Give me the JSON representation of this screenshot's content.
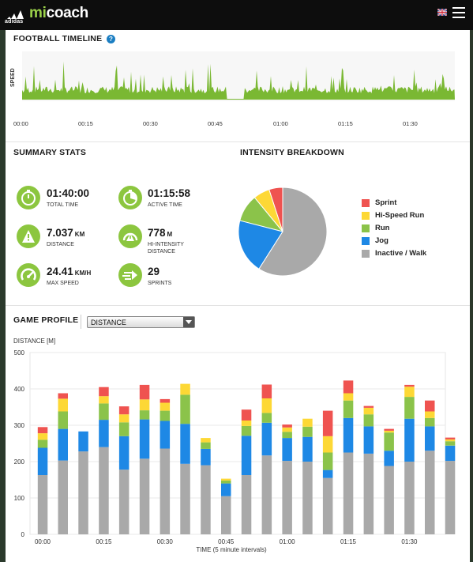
{
  "header": {
    "brand_text": "adidas",
    "app_name_left": "mi",
    "app_name_right": "coach",
    "language_flag": "uk-flag-icon",
    "menu_icon": "hamburger-menu-icon"
  },
  "timeline": {
    "title": "FOOTBALL TIMELINE",
    "help_glyph": "?",
    "y_label": "SPEED",
    "ticks": [
      "00:00",
      "00:15",
      "00:30",
      "00:45",
      "01:00",
      "01:15",
      "01:30"
    ],
    "color": "#7ab833"
  },
  "summary": {
    "title": "SUMMARY STATS",
    "stats": [
      {
        "value": "01:40:00",
        "unit": "",
        "label": "TOTAL TIME",
        "icon": "stopwatch-icon"
      },
      {
        "value": "01:15:58",
        "unit": "",
        "label": "ACTIVE TIME",
        "icon": "active-stopwatch-icon"
      },
      {
        "value": "7.037",
        "unit": "KM",
        "label": "DISTANCE",
        "icon": "distance-icon"
      },
      {
        "value": "778",
        "unit": "M",
        "label": "HI-INTENSITY DISTANCE",
        "icon": "hi-intensity-icon"
      },
      {
        "value": "24.41",
        "unit": "KM/H",
        "label": "MAX SPEED",
        "icon": "max-speed-icon"
      },
      {
        "value": "29",
        "unit": "",
        "label": "SPRINTS",
        "icon": "sprints-icon"
      }
    ]
  },
  "intensity": {
    "title": "INTENSITY BREAKDOWN",
    "legend": [
      {
        "label": "Sprint",
        "color": "#ef5350"
      },
      {
        "label": "Hi-Speed Run",
        "color": "#fdd835"
      },
      {
        "label": "Run",
        "color": "#8bc34a"
      },
      {
        "label": "Jog",
        "color": "#1e88e5"
      },
      {
        "label": "Inactive / Walk",
        "color": "#a9a9a9"
      }
    ]
  },
  "game_profile": {
    "title": "GAME PROFILE",
    "dropdown_value": "DISTANCE",
    "x_label": "TIME (5 minute intervals)"
  },
  "chart_data": [
    {
      "type": "pie",
      "title": "INTENSITY BREAKDOWN",
      "labels": [
        "Sprint",
        "Hi-Speed Run",
        "Run",
        "Jog",
        "Inactive / Walk"
      ],
      "values": [
        5,
        6,
        10,
        20,
        59
      ],
      "colors": [
        "#ef5350",
        "#fdd835",
        "#8bc34a",
        "#1e88e5",
        "#a9a9a9"
      ],
      "legend": "right"
    },
    {
      "type": "bar",
      "stacked": true,
      "ylabel": "DISTANCE [M]",
      "xlabel": "TIME (5 minute intervals)",
      "ylim": [
        0,
        500
      ],
      "yticks": [
        0,
        100,
        200,
        300,
        400,
        500
      ],
      "xtick_labels": [
        "00:00",
        "00:15",
        "00:30",
        "00:45",
        "01:00",
        "01:15",
        "01:30"
      ],
      "xtick_positions": [
        0,
        3,
        6,
        9,
        12,
        15,
        18
      ],
      "grid": true,
      "series": [
        {
          "name": "Inactive / Walk",
          "color": "#a9a9a9",
          "values": [
            163,
            203,
            228,
            240,
            178,
            208,
            236,
            194,
            190,
            105,
            163,
            217,
            202,
            200,
            155,
            225,
            222,
            188,
            200,
            230,
            202
          ]
        },
        {
          "name": "Jog",
          "color": "#1e88e5",
          "values": [
            75,
            87,
            55,
            75,
            92,
            108,
            76,
            110,
            45,
            35,
            108,
            90,
            63,
            68,
            22,
            95,
            75,
            42,
            118,
            67,
            42
          ]
        },
        {
          "name": "Run",
          "color": "#8bc34a",
          "values": [
            22,
            48,
            0,
            45,
            38,
            25,
            28,
            80,
            18,
            8,
            27,
            27,
            17,
            28,
            48,
            48,
            33,
            50,
            60,
            23,
            12
          ]
        },
        {
          "name": "Hi-Speed Run",
          "color": "#fdd835",
          "values": [
            18,
            35,
            0,
            20,
            22,
            30,
            22,
            30,
            12,
            5,
            15,
            40,
            12,
            22,
            45,
            20,
            18,
            5,
            28,
            18,
            5
          ]
        },
        {
          "name": "Sprint",
          "color": "#ef5350",
          "values": [
            17,
            15,
            0,
            25,
            22,
            40,
            10,
            0,
            0,
            0,
            30,
            38,
            8,
            0,
            70,
            35,
            5,
            5,
            5,
            30,
            5
          ]
        }
      ]
    }
  ]
}
